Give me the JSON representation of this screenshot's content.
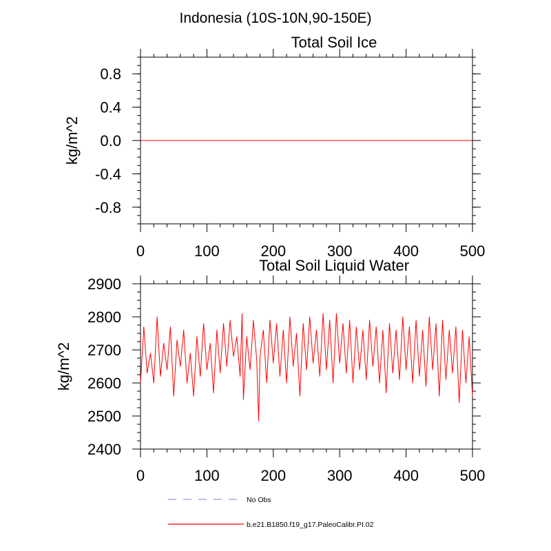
{
  "figure_title": "Indonesia (10S-10N,90-150E)",
  "colors": {
    "model": "#ff0000",
    "obs": "#9999dd",
    "axis": "#000000"
  },
  "legend": {
    "obs_label": "No Obs",
    "model_label": "b.e21.B1850.f19_g17.PaleoCalibr.PI.02"
  },
  "chart_data": [
    {
      "type": "line",
      "title": "Total Soil Ice",
      "xlabel": "",
      "ylabel": "kg/m^2",
      "xlim": [
        0,
        500
      ],
      "ylim": [
        -1.0,
        1.0
      ],
      "xticks": [
        0,
        100,
        200,
        300,
        400,
        500
      ],
      "xtick_labels": [
        "0",
        "100",
        "200",
        "300",
        "400",
        "500"
      ],
      "yticks": [
        0.8,
        0.4,
        0.0,
        -0.4,
        -0.8
      ],
      "ytick_labels": [
        "0.8",
        "0.4",
        "0.0",
        "-0.4",
        "-0.8"
      ],
      "series": [
        {
          "name": "b.e21.B1850.f19_g17.PaleoCalibr.PI.02",
          "x": [
            0,
            500
          ],
          "values": [
            0.0,
            0.0
          ]
        }
      ]
    },
    {
      "type": "line",
      "title": "Total Soil Liquid Water",
      "xlabel": "",
      "ylabel": "kg/m^2",
      "xlim": [
        0,
        500
      ],
      "ylim": [
        2400,
        2900
      ],
      "xticks": [
        0,
        100,
        200,
        300,
        400,
        500
      ],
      "xtick_labels": [
        "0",
        "100",
        "200",
        "300",
        "400",
        "500"
      ],
      "yticks": [
        2900,
        2800,
        2700,
        2600,
        2500,
        2400
      ],
      "ytick_labels": [
        "2900",
        "2800",
        "2700",
        "2600",
        "2500",
        "2400"
      ],
      "series": [
        {
          "name": "b.e21.B1850.f19_g17.PaleoCalibr.PI.02",
          "x": [
            0,
            5,
            10,
            15,
            20,
            25,
            30,
            35,
            40,
            45,
            50,
            55,
            60,
            65,
            70,
            75,
            80,
            85,
            90,
            95,
            100,
            105,
            110,
            115,
            120,
            125,
            130,
            135,
            140,
            145,
            150,
            153,
            155,
            160,
            165,
            170,
            175,
            178,
            180,
            185,
            190,
            195,
            200,
            205,
            210,
            215,
            220,
            225,
            230,
            235,
            240,
            245,
            250,
            255,
            260,
            265,
            270,
            275,
            280,
            285,
            290,
            295,
            300,
            305,
            310,
            315,
            320,
            325,
            330,
            335,
            340,
            345,
            350,
            355,
            360,
            365,
            370,
            375,
            380,
            385,
            390,
            395,
            400,
            405,
            410,
            415,
            420,
            425,
            430,
            435,
            440,
            445,
            450,
            455,
            460,
            465,
            470,
            475,
            480,
            485,
            490,
            495,
            500
          ],
          "values": [
            2600,
            2770,
            2630,
            2690,
            2600,
            2800,
            2620,
            2720,
            2640,
            2770,
            2560,
            2730,
            2650,
            2760,
            2600,
            2690,
            2560,
            2740,
            2620,
            2780,
            2640,
            2720,
            2570,
            2760,
            2630,
            2780,
            2650,
            2790,
            2680,
            2740,
            2620,
            2810,
            2550,
            2740,
            2640,
            2790,
            2670,
            2485,
            2680,
            2760,
            2600,
            2790,
            2660,
            2780,
            2620,
            2760,
            2600,
            2800,
            2650,
            2750,
            2560,
            2780,
            2640,
            2800,
            2660,
            2760,
            2620,
            2810,
            2640,
            2790,
            2600,
            2810,
            2660,
            2780,
            2630,
            2790,
            2600,
            2770,
            2640,
            2760,
            2610,
            2790,
            2650,
            2770,
            2600,
            2760,
            2570,
            2780,
            2630,
            2760,
            2610,
            2800,
            2640,
            2770,
            2600,
            2790,
            2620,
            2760,
            2590,
            2800,
            2640,
            2780,
            2560,
            2790,
            2610,
            2760,
            2630,
            2770,
            2540,
            2760,
            2600,
            2740,
            2560
          ]
        }
      ]
    }
  ]
}
